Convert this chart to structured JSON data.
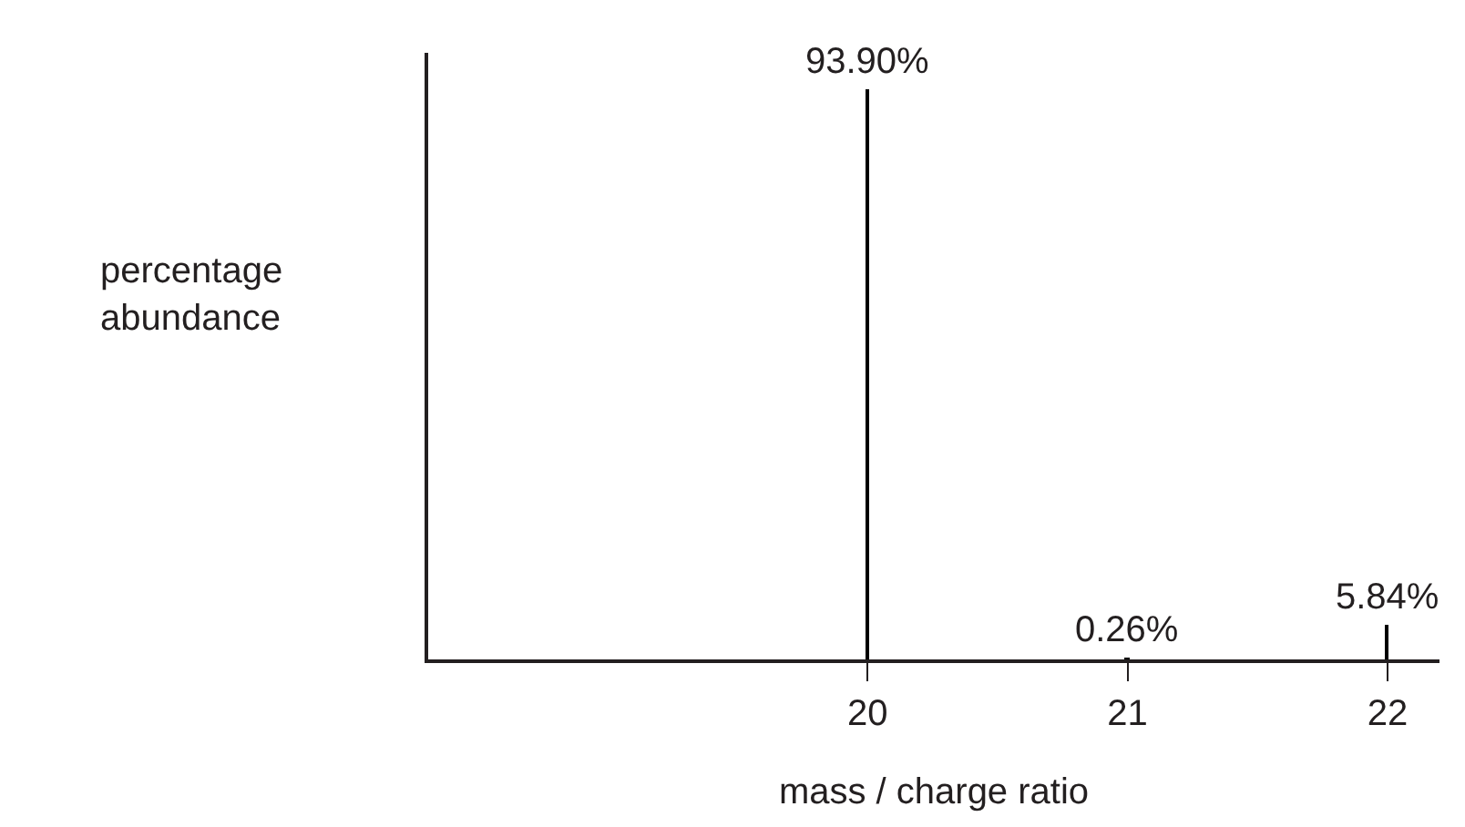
{
  "chart_data": {
    "type": "bar",
    "xlabel": "mass / charge ratio",
    "ylabel": "percentage abundance",
    "x": [
      20,
      21,
      22
    ],
    "values": [
      93.9,
      0.26,
      5.84
    ],
    "value_labels": [
      "93.90%",
      "0.26%",
      "5.84%"
    ],
    "color": "#000000",
    "xlim": [
      18.31,
      22.2
    ],
    "xticks": [
      20,
      21,
      22
    ],
    "ylim": [
      0,
      100
    ],
    "tick_labels": "x",
    "legend": false
  }
}
